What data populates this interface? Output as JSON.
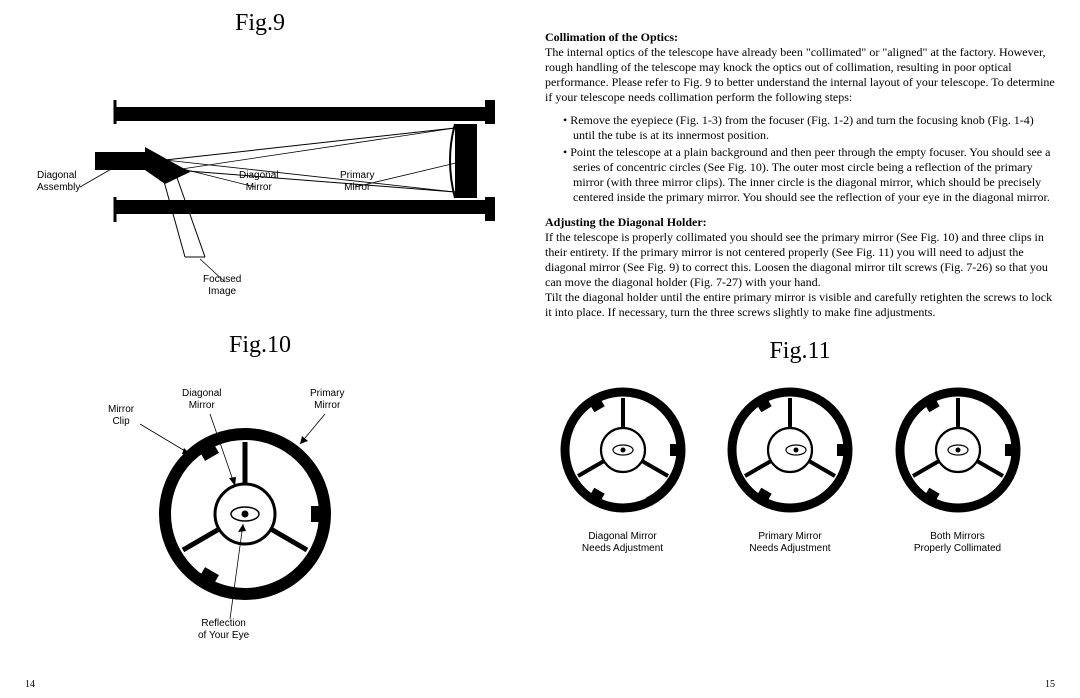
{
  "colors": {
    "ink": "#000000",
    "bg": "#ffffff"
  },
  "left": {
    "fig9": {
      "title": "Fig.9",
      "labels": {
        "diagonal_assembly": "Diagonal\nAssembly",
        "diagonal_mirror": "Diagonal\nMirror",
        "primary_mirror": "Primary\nMirror",
        "focused_image": "Focused\nImage"
      }
    },
    "fig10": {
      "title": "Fig.10",
      "labels": {
        "mirror_clip": "Mirror\nClip",
        "diagonal_mirror": "Diagonal\nMirror",
        "primary_mirror": "Primary\nMirror",
        "reflection": "Reflection\nof Your Eye"
      }
    },
    "pagenum": "14"
  },
  "right": {
    "section1_title": "Collimation of the Optics:",
    "section1_body": "The internal optics of the telescope have already been \"collimated\" or \"aligned\" at the factory.  However, rough handling of the telescope may knock the optics out of collimation, resulting in poor optical performance. Please refer to Fig. 9 to better understand the internal layout of your telescope. To determine if your telescope needs collimation perform the following steps:",
    "bullets": [
      "Remove the eyepiece (Fig. 1-3) from the focuser (Fig. 1-2) and turn the focusing knob (Fig. 1-4) until the tube is at its innermost position.",
      "Point the telescope at a plain background and then peer through the empty focuser.  You should see a series of concentric circles (See Fig. 10).  The outer most circle being a reflection of the primary mirror (with three mirror clips).  The inner circle is the diagonal mirror, which should be precisely centered inside the primary mirror. You should see the reflection of your eye in the diagonal mirror."
    ],
    "section2_title": "Adjusting the Diagonal Holder:",
    "section2_body": "If the telescope is properly collimated you should see the primary mirror (See Fig. 10) and three clips in their entirety.  If the primary mirror is not centered properly (See Fig. 11) you will need to adjust the diagonal mirror (See Fig. 9) to correct this.  Loosen the diagonal mirror tilt screws (Fig. 7-26) so that you can move the diagonal holder (Fig. 7-27) with your hand.\nTilt the diagonal holder until the entire primary mirror is visible and carefully retighten the screws to lock it into place.  If necessary, turn the three screws slightly to make fine adjustments.",
    "fig11": {
      "title": "Fig.11",
      "items": [
        {
          "label": "Diagonal Mirror\nNeeds Adjustment",
          "offset_inner": true
        },
        {
          "label": "Primary Mirror\nNeeds Adjustment",
          "offset_outer": true
        },
        {
          "label": "Both Mirrors\nProperly Collimated",
          "offset_none": true
        }
      ]
    },
    "pagenum": "15"
  }
}
